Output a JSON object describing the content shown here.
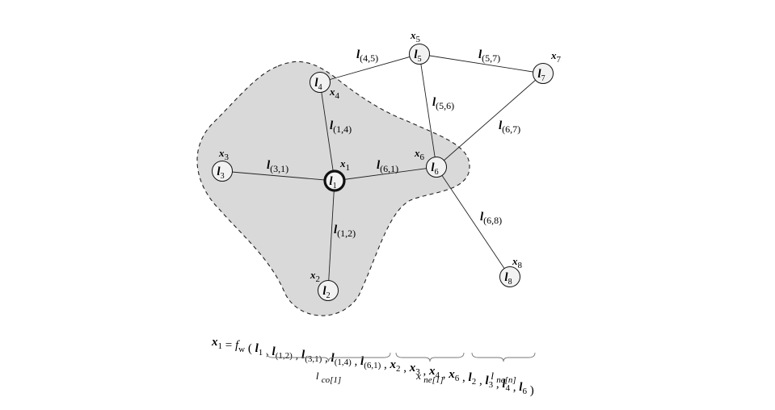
{
  "nodes": [
    {
      "id": "n1",
      "node_label": {
        "main": "l",
        "sub": "1"
      },
      "state_label": {
        "main": "x",
        "sub": "1"
      }
    },
    {
      "id": "n2",
      "node_label": {
        "main": "l",
        "sub": "2"
      },
      "state_label": {
        "main": "x",
        "sub": "2"
      }
    },
    {
      "id": "n3",
      "node_label": {
        "main": "l",
        "sub": "3"
      },
      "state_label": {
        "main": "x",
        "sub": "3"
      }
    },
    {
      "id": "n4",
      "node_label": {
        "main": "l",
        "sub": "4"
      },
      "state_label": {
        "main": "x",
        "sub": "4"
      }
    },
    {
      "id": "n5",
      "node_label": {
        "main": "l",
        "sub": "5"
      },
      "state_label": {
        "main": "x",
        "sub": "5"
      }
    },
    {
      "id": "n6",
      "node_label": {
        "main": "l",
        "sub": "6"
      },
      "state_label": {
        "main": "x",
        "sub": "6"
      }
    },
    {
      "id": "n7",
      "node_label": {
        "main": "l",
        "sub": "7"
      },
      "state_label": {
        "main": "x",
        "sub": "7"
      }
    },
    {
      "id": "n8",
      "node_label": {
        "main": "l",
        "sub": "8"
      },
      "state_label": {
        "main": "x",
        "sub": "8"
      }
    }
  ],
  "edges": [
    {
      "from": "n1",
      "to": "n4",
      "label": {
        "main": "l",
        "sub": "(1,4)"
      }
    },
    {
      "from": "n1",
      "to": "n3",
      "label": {
        "main": "l",
        "sub": "(3,1)"
      }
    },
    {
      "from": "n1",
      "to": "n6",
      "label": {
        "main": "l",
        "sub": "(6,1)"
      }
    },
    {
      "from": "n1",
      "to": "n2",
      "label": {
        "main": "l",
        "sub": "(1,2)"
      }
    },
    {
      "from": "n4",
      "to": "n5",
      "label": {
        "main": "l",
        "sub": "(4,5)"
      }
    },
    {
      "from": "n5",
      "to": "n7",
      "label": {
        "main": "l",
        "sub": "(5,7)"
      }
    },
    {
      "from": "n5",
      "to": "n6",
      "label": {
        "main": "l",
        "sub": "(5,6)"
      }
    },
    {
      "from": "n6",
      "to": "n7",
      "label": {
        "main": "l",
        "sub": "(6,7)"
      }
    },
    {
      "from": "n6",
      "to": "n8",
      "label": {
        "main": "l",
        "sub": "(6,8)"
      }
    }
  ],
  "highlighted_node": "n1",
  "colors": {
    "neighborhood_fill": "#d9d9d9",
    "node_fill": "#f2f2f2",
    "line": "#222222"
  },
  "formula": {
    "lhs": {
      "main": "x",
      "sub": "1"
    },
    "equals": "=",
    "func": {
      "main": "f",
      "sub": "w"
    },
    "open": "(",
    "close": ")",
    "arguments": [
      {
        "main": "l",
        "sub": "1"
      },
      {
        "main": "l",
        "sub": "(1,2)"
      },
      {
        "main": "l",
        "sub": "(3,1)"
      },
      {
        "main": "l",
        "sub": "(1,4)"
      },
      {
        "main": "l",
        "sub": "(6,1)"
      },
      {
        "main": "x",
        "sub": "2"
      },
      {
        "main": "x",
        "sub": "3"
      },
      {
        "main": "x",
        "sub": "4"
      },
      {
        "main": "x",
        "sub": "6"
      },
      {
        "main": "l",
        "sub": "2"
      },
      {
        "main": "l",
        "sub": "3"
      },
      {
        "main": "l",
        "sub": "4"
      },
      {
        "main": "l",
        "sub": "6"
      }
    ],
    "separator": ",",
    "groups": [
      {
        "label": {
          "main": "l",
          "sub": "co[1]"
        }
      },
      {
        "label": {
          "main": "x",
          "sub": "ne[1]"
        }
      },
      {
        "label": {
          "main": "l",
          "sub": "ne[n]"
        }
      }
    ]
  }
}
